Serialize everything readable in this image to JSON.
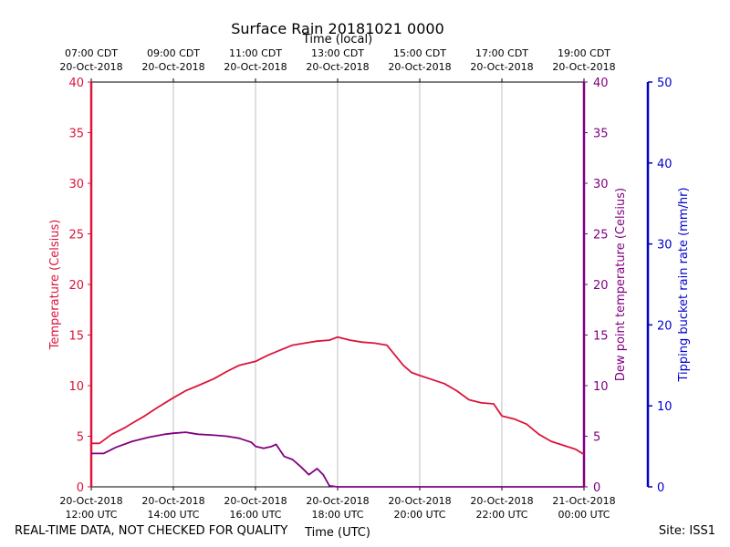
{
  "chart_data": {
    "type": "line",
    "title": "Surface Rain 20181021 0000",
    "top_axis_label": "Time (local)",
    "xlabel": "Time (UTC)",
    "ylabel_left": "Temperature (Celsius)",
    "ylabel_right": "Dew point temperature (Celsius)",
    "ylabel_far_right": "Tipping bucket rain rate (mm/hr)",
    "x_range_hours_utc": [
      12,
      24
    ],
    "ylim": [
      0,
      40
    ],
    "ylim_far_right": [
      0,
      50
    ],
    "yticks": [
      "0",
      "5",
      "10",
      "15",
      "20",
      "25",
      "30",
      "35",
      "40"
    ],
    "yticks_far_right": [
      "0",
      "10",
      "20",
      "30",
      "40",
      "50"
    ],
    "grid": "vertical",
    "x_ticks_bottom": [
      {
        "hour": 12,
        "line1": "20-Oct-2018",
        "line2": "12:00 UTC"
      },
      {
        "hour": 14,
        "line1": "20-Oct-2018",
        "line2": "14:00 UTC"
      },
      {
        "hour": 16,
        "line1": "20-Oct-2018",
        "line2": "16:00 UTC"
      },
      {
        "hour": 18,
        "line1": "20-Oct-2018",
        "line2": "18:00 UTC"
      },
      {
        "hour": 20,
        "line1": "20-Oct-2018",
        "line2": "20:00 UTC"
      },
      {
        "hour": 22,
        "line1": "20-Oct-2018",
        "line2": "22:00 UTC"
      },
      {
        "hour": 24,
        "line1": "21-Oct-2018",
        "line2": "00:00 UTC"
      }
    ],
    "x_ticks_top": [
      {
        "hour": 12,
        "line1": "07:00 CDT",
        "line2": "20-Oct-2018"
      },
      {
        "hour": 14,
        "line1": "09:00 CDT",
        "line2": "20-Oct-2018"
      },
      {
        "hour": 16,
        "line1": "11:00 CDT",
        "line2": "20-Oct-2018"
      },
      {
        "hour": 18,
        "line1": "13:00 CDT",
        "line2": "20-Oct-2018"
      },
      {
        "hour": 20,
        "line1": "15:00 CDT",
        "line2": "20-Oct-2018"
      },
      {
        "hour": 22,
        "line1": "17:00 CDT",
        "line2": "20-Oct-2018"
      },
      {
        "hour": 24,
        "line1": "19:00 CDT",
        "line2": "20-Oct-2018"
      }
    ],
    "series": [
      {
        "name": "Temperature",
        "color": "#dc143c",
        "axis": "left",
        "x": [
          12.0,
          12.2,
          12.5,
          12.8,
          13.0,
          13.3,
          13.6,
          14.0,
          14.3,
          14.6,
          15.0,
          15.3,
          15.6,
          16.0,
          16.3,
          16.6,
          16.9,
          17.2,
          17.5,
          17.8,
          18.0,
          18.3,
          18.6,
          18.9,
          19.2,
          19.4,
          19.6,
          19.8,
          20.0,
          20.3,
          20.6,
          20.9,
          21.2,
          21.5,
          21.8,
          22.0,
          22.3,
          22.6,
          22.9,
          23.2,
          23.5,
          23.8,
          24.0
        ],
        "values": [
          4.3,
          4.3,
          5.2,
          5.8,
          6.3,
          7.0,
          7.8,
          8.8,
          9.5,
          10.0,
          10.7,
          11.4,
          12.0,
          12.4,
          13.0,
          13.5,
          14.0,
          14.2,
          14.4,
          14.5,
          14.8,
          14.5,
          14.3,
          14.2,
          14.0,
          13.0,
          12.0,
          11.3,
          11.0,
          10.6,
          10.2,
          9.5,
          8.6,
          8.3,
          8.2,
          7.0,
          6.7,
          6.2,
          5.2,
          4.5,
          4.1,
          3.7,
          3.2
        ]
      },
      {
        "name": "Dew point temperature",
        "color": "#800080",
        "axis": "right",
        "x": [
          12.0,
          12.3,
          12.6,
          13.0,
          13.4,
          13.8,
          14.0,
          14.3,
          14.6,
          15.0,
          15.3,
          15.6,
          15.9,
          16.0,
          16.2,
          16.4,
          16.5,
          16.7,
          16.9,
          17.1,
          17.3,
          17.5,
          17.65,
          17.8,
          18.0,
          18.3,
          18.6,
          19.0,
          19.5,
          20.0,
          21.0,
          22.0,
          23.0,
          24.0
        ],
        "values": [
          3.3,
          3.3,
          3.9,
          4.5,
          4.9,
          5.2,
          5.3,
          5.4,
          5.2,
          5.1,
          5.0,
          4.8,
          4.4,
          4.0,
          3.8,
          4.0,
          4.2,
          3.0,
          2.7,
          2.0,
          1.2,
          1.8,
          1.2,
          0.1,
          0.0,
          0.0,
          0.0,
          0.0,
          0.0,
          0.0,
          0.0,
          0.0,
          0.0,
          0.0
        ]
      }
    ]
  },
  "footer": {
    "left": "REAL-TIME DATA, NOT CHECKED FOR QUALITY",
    "right": "Site: ISS1"
  },
  "colors": {
    "temperature": "#dc143c",
    "dewpoint": "#800080",
    "rain": "#0000cd",
    "grid": "#b0b0b0"
  }
}
